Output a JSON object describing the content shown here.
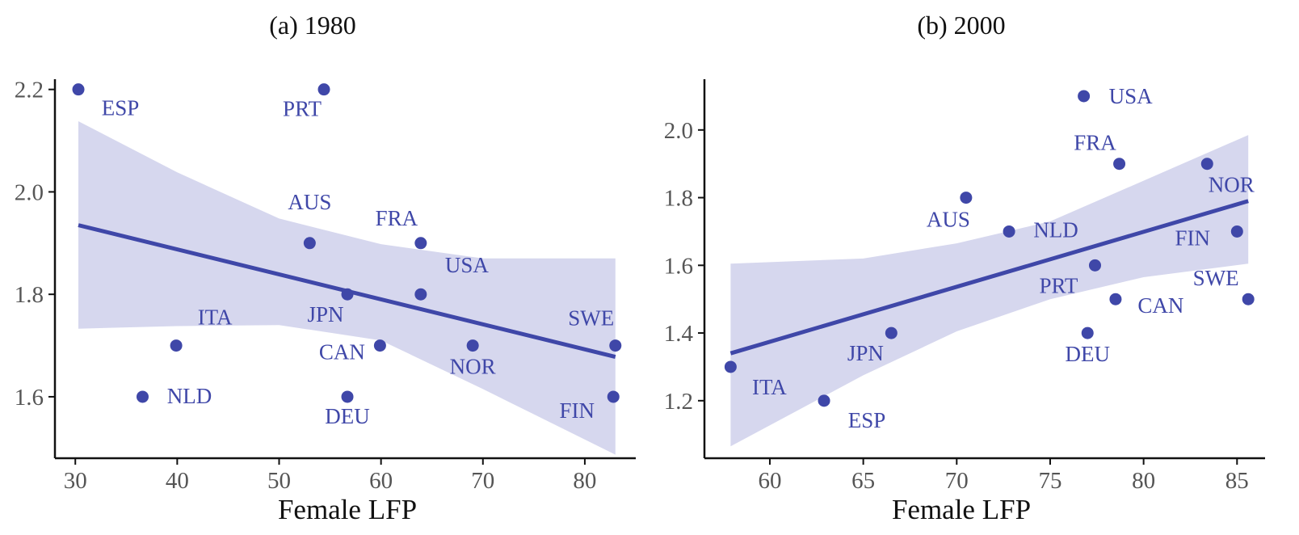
{
  "chart_data": [
    {
      "type": "scatter",
      "title": "(a) 1980",
      "xlabel": "Female LFP",
      "ylabel": "",
      "xlim": [
        28,
        85
      ],
      "ylim": [
        1.48,
        2.22
      ],
      "xticks": [
        30,
        40,
        50,
        60,
        70,
        80
      ],
      "yticks": [
        1.6,
        1.8,
        2.0,
        2.2
      ],
      "grid": false,
      "accent_color": "#3f47a8",
      "band_color": "#d6d7ee",
      "points": [
        {
          "label": "ESP",
          "x": 30.3,
          "y": 2.2
        },
        {
          "label": "PRT",
          "x": 54.4,
          "y": 2.2
        },
        {
          "label": "FRA",
          "x": 63.9,
          "y": 1.9
        },
        {
          "label": "AUS",
          "x": 53.0,
          "y": 1.9
        },
        {
          "label": "USA",
          "x": 63.9,
          "y": 1.8
        },
        {
          "label": "JPN",
          "x": 56.7,
          "y": 1.8
        },
        {
          "label": "ITA",
          "x": 39.9,
          "y": 1.7
        },
        {
          "label": "CAN",
          "x": 59.9,
          "y": 1.7
        },
        {
          "label": "NOR",
          "x": 69.0,
          "y": 1.7
        },
        {
          "label": "SWE",
          "x": 83.0,
          "y": 1.7
        },
        {
          "label": "NLD",
          "x": 36.6,
          "y": 1.6
        },
        {
          "label": "DEU",
          "x": 56.7,
          "y": 1.6
        },
        {
          "label": "FIN",
          "x": 82.8,
          "y": 1.6
        }
      ],
      "fit": {
        "x": [
          30.3,
          83.0
        ],
        "y": [
          1.935,
          1.678
        ]
      },
      "band": {
        "x": [
          30.3,
          40,
          50,
          60,
          70,
          83.0
        ],
        "lower": [
          1.733,
          1.738,
          1.74,
          1.71,
          1.615,
          1.487
        ],
        "upper": [
          2.138,
          2.038,
          1.948,
          1.898,
          1.87,
          1.87
        ]
      }
    },
    {
      "type": "scatter",
      "title": "(b) 2000",
      "xlabel": "Female LFP",
      "ylabel": "",
      "xlim": [
        56.5,
        86.5
      ],
      "ylim": [
        1.03,
        2.15
      ],
      "xticks": [
        60,
        65,
        70,
        75,
        80,
        85
      ],
      "yticks": [
        1.2,
        1.4,
        1.6,
        1.8,
        2.0
      ],
      "grid": false,
      "accent_color": "#3f47a8",
      "band_color": "#d6d7ee",
      "points": [
        {
          "label": "USA",
          "x": 76.8,
          "y": 2.1
        },
        {
          "label": "FRA",
          "x": 78.7,
          "y": 1.9
        },
        {
          "label": "NOR",
          "x": 83.4,
          "y": 1.9
        },
        {
          "label": "AUS",
          "x": 70.5,
          "y": 1.8
        },
        {
          "label": "NLD",
          "x": 72.8,
          "y": 1.7
        },
        {
          "label": "FIN",
          "x": 85.0,
          "y": 1.7
        },
        {
          "label": "PRT",
          "x": 77.4,
          "y": 1.6
        },
        {
          "label": "CAN",
          "x": 78.5,
          "y": 1.5
        },
        {
          "label": "SWE",
          "x": 85.6,
          "y": 1.5
        },
        {
          "label": "JPN",
          "x": 66.5,
          "y": 1.4
        },
        {
          "label": "DEU",
          "x": 77.0,
          "y": 1.4
        },
        {
          "label": "ITA",
          "x": 57.9,
          "y": 1.3
        },
        {
          "label": "ESP",
          "x": 62.9,
          "y": 1.2
        }
      ],
      "fit": {
        "x": [
          57.9,
          85.6
        ],
        "y": [
          1.34,
          1.79
        ]
      },
      "band": {
        "x": [
          57.9,
          65,
          70,
          75,
          80,
          85.6
        ],
        "lower": [
          1.065,
          1.275,
          1.405,
          1.5,
          1.565,
          1.605
        ],
        "upper": [
          1.605,
          1.62,
          1.665,
          1.73,
          1.85,
          1.985
        ]
      }
    }
  ]
}
